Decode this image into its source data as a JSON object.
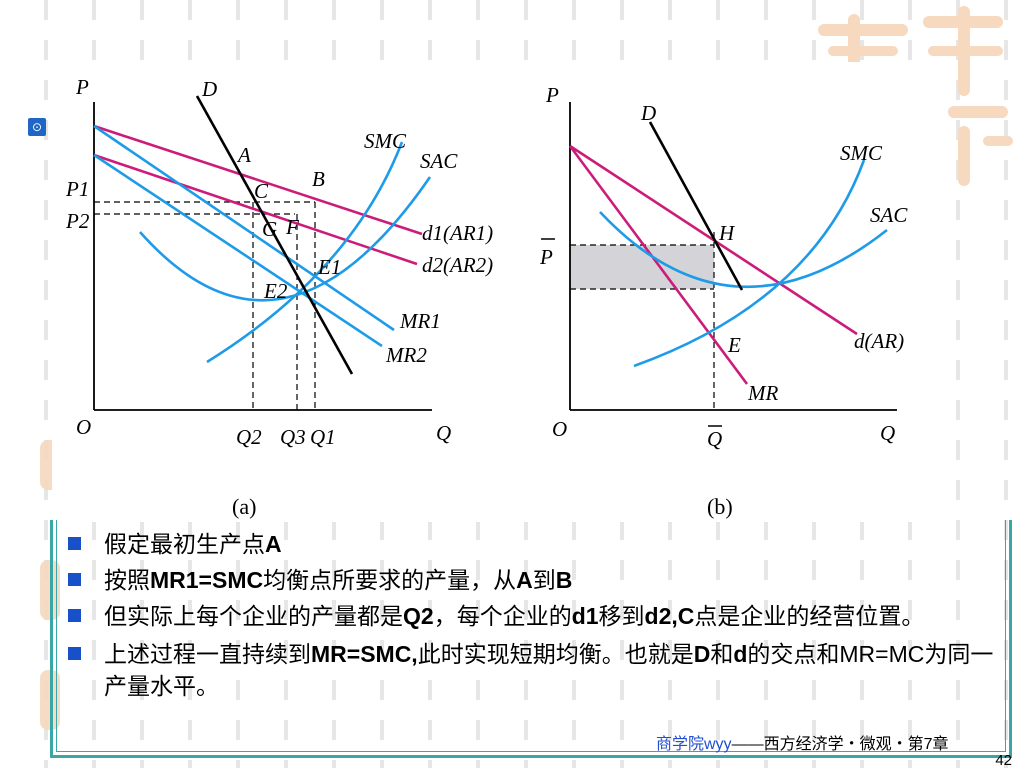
{
  "colors": {
    "accent_blue": "#1e9be8",
    "accent_magenta": "#cc1c7a",
    "bullet": "#1750c9",
    "frame": "#3aa6a6",
    "shade": "#d4d4d8"
  },
  "nav": {
    "icon": "play-circle-icon"
  },
  "diagram_a": {
    "caption": "(a)",
    "axis_y": "P",
    "axis_x": "Q",
    "origin": "O",
    "p1": "P1",
    "p2": "P2",
    "q1": "Q1",
    "q2": "Q2",
    "q3": "Q3",
    "D": "D",
    "A": "A",
    "B": "B",
    "C": "C",
    "G": "G",
    "F": "F",
    "E1": "E1",
    "E2": "E2",
    "SMC": "SMC",
    "SAC": "SAC",
    "d1": "d1(AR1)",
    "d2": "d2(AR2)",
    "MR1": "MR1",
    "MR2": "MR2"
  },
  "diagram_b": {
    "caption": "(b)",
    "axis_y": "P",
    "axis_x": "Q",
    "origin": "O",
    "pbar": "P",
    "qbar": "Q",
    "D": "D",
    "H": "H",
    "E": "E",
    "SMC": "SMC",
    "SAC": "SAC",
    "d": "d(AR)",
    "MR": "MR"
  },
  "bullets": [
    {
      "pre": "假定最初生产点",
      "b1": "A",
      "mid": "",
      "b2": "",
      "mid2": "",
      "b3": "",
      "post": ""
    },
    {
      "pre": "按照",
      "b1": "MR1=SMC",
      "mid": "均衡点所要求的产量，从",
      "b2": "A",
      "mid2": "到",
      "b3": "B",
      "post": ""
    },
    {
      "pre": "但实际上每个企业的产量都是",
      "b1": "Q2",
      "mid": "，每个企业的",
      "b2": "d1",
      "mid2": "移到",
      "b3": "d2,C",
      "post": "点是企业的经营位置。"
    },
    {
      "pre": "上述过程一直持续到",
      "b1": "MR=SMC,",
      "mid": "此时实现短期均衡。也就是",
      "b2": "D",
      "mid2": "和",
      "b3": "d",
      "post": "的交点和MR=MC为同一产量水平。"
    }
  ],
  "footer": {
    "school": "商学院wyy",
    "course": "——西方经济学・微观・第7章",
    "page": "42"
  }
}
